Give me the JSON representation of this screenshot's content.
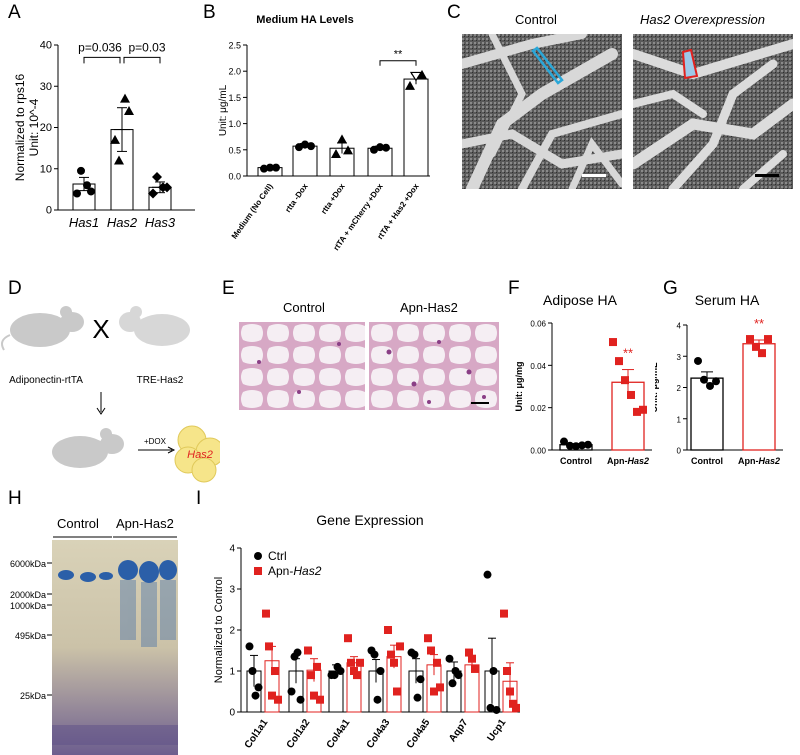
{
  "panels": {
    "A": "A",
    "B": "B",
    "C": "C",
    "D": "D",
    "E": "E",
    "F": "F",
    "G": "G",
    "H": "H",
    "I": "I"
  },
  "chart_data": [
    {
      "panel": "A",
      "type": "scatter",
      "ylabel_line1": "Normalized to rps16",
      "ylabel_line2": "Unit: 10^-4",
      "categories": [
        "Has1",
        "Has2",
        "Has3"
      ],
      "means": [
        6.3,
        19.5,
        5.5
      ],
      "sem": [
        1.6,
        5.3,
        1.3
      ],
      "points": [
        [
          4,
          4.5,
          9.5,
          6
        ],
        [
          17,
          24,
          12,
          27
        ],
        [
          4,
          5.5,
          8,
          5.5
        ]
      ],
      "ylim": [
        0,
        40
      ],
      "yticks": [
        0,
        10,
        20,
        30,
        40
      ],
      "annotations": [
        "p=0.036",
        "p=0.03"
      ]
    },
    {
      "panel": "B",
      "type": "bar",
      "title": "Medium HA Levels",
      "ylabel": "Unit: μg/mL",
      "categories": [
        "Medium (No Cell)",
        "rtta -Dox",
        "rtta +Dox",
        "rtTA + mCherry +Dox",
        "rtTA + Has2 +Dox"
      ],
      "values": [
        0.16,
        0.57,
        0.53,
        0.53,
        1.85
      ],
      "sem": [
        0.02,
        0.05,
        0.1,
        0.04,
        0.1
      ],
      "points": [
        [
          0.14,
          0.16,
          0.16
        ],
        [
          0.55,
          0.6,
          0.57
        ],
        [
          0.42,
          0.7,
          0.49
        ],
        [
          0.5,
          0.55,
          0.54
        ],
        [
          1.72,
          1.9,
          1.93
        ]
      ],
      "ylim": [
        0,
        2.5
      ],
      "yticks": [
        "0.0",
        "0.5",
        "1.0",
        "1.5",
        "2.0",
        "2.5"
      ],
      "annotations": [
        "**"
      ]
    },
    {
      "panel": "F",
      "type": "bar",
      "title": "Adipose HA",
      "ylabel": "Unit: μg/mg",
      "categories": [
        "Control",
        "Apn-Has2"
      ],
      "values": [
        0.0025,
        0.032
      ],
      "sem": [
        0.0005,
        0.006
      ],
      "points": [
        [
          0.004,
          0.002,
          0.0018,
          0.0022,
          0.0025
        ],
        [
          0.051,
          0.042,
          0.033,
          0.026,
          0.018,
          0.019
        ]
      ],
      "ylim": [
        0,
        0.06
      ],
      "yticks": [
        "0.00",
        "0.02",
        "0.04",
        "0.06"
      ],
      "annotations": [
        "**"
      ]
    },
    {
      "panel": "G",
      "type": "bar",
      "title": "Serum HA",
      "ylabel": "Unit: μg/mL",
      "categories": [
        "Control",
        "Apn-Has2"
      ],
      "values": [
        2.3,
        3.4
      ],
      "sem": [
        0.2,
        0.12
      ],
      "points": [
        [
          2.85,
          2.25,
          2.05,
          2.2
        ],
        [
          3.55,
          3.3,
          3.1,
          3.55
        ]
      ],
      "ylim": [
        0,
        4
      ],
      "yticks": [
        "0",
        "1",
        "2",
        "3",
        "4"
      ],
      "annotations": [
        "**"
      ]
    },
    {
      "panel": "I",
      "type": "bar",
      "title": "Gene Expression",
      "ylabel": "Normalized to Control",
      "categories": [
        "Col1a1",
        "Col1a2",
        "Col4a1",
        "Col4a3",
        "Col4a5",
        "Aqp7",
        "Ucp1"
      ],
      "series": [
        {
          "name": "Ctrl",
          "values": [
            1.0,
            1.0,
            1.0,
            1.0,
            1.0,
            1.0,
            1.0
          ],
          "sem": [
            0.38,
            0.3,
            0.15,
            0.28,
            0.3,
            0.22,
            0.8
          ],
          "points": [
            [
              1.6,
              1.0,
              0.4,
              0.6
            ],
            [
              0.5,
              1.35,
              1.45,
              0.3
            ],
            [
              0.9,
              0.9,
              1.1,
              1.0
            ],
            [
              1.5,
              1.4,
              0.3,
              1.0
            ],
            [
              1.45,
              1.4,
              0.35,
              0.8
            ],
            [
              1.3,
              0.7,
              1.0,
              0.9
            ],
            [
              3.35,
              0.1,
              1.0,
              0.05
            ]
          ]
        },
        {
          "name": "Apn-Has2",
          "values": [
            1.25,
            1.02,
            1.2,
            1.35,
            1.15,
            1.15,
            0.75
          ],
          "sem": [
            0.35,
            0.28,
            0.15,
            0.28,
            0.25,
            0.15,
            0.45
          ],
          "points": [
            [
              2.4,
              1.6,
              0.4,
              1.0,
              0.3
            ],
            [
              1.5,
              0.9,
              0.4,
              1.1,
              0.3
            ],
            [
              1.8,
              1.2,
              1.0,
              0.9,
              1.2
            ],
            [
              2.0,
              1.4,
              1.2,
              0.5,
              1.6
            ],
            [
              1.8,
              1.5,
              0.5,
              1.2,
              0.6
            ],
            [
              1.45,
              1.3,
              1.05
            ],
            [
              2.4,
              1.0,
              0.5,
              0.2,
              0.1
            ]
          ]
        }
      ],
      "ylim": [
        0,
        4
      ],
      "yticks": [
        "0",
        "1",
        "2",
        "3",
        "4"
      ]
    }
  ],
  "panel_C": {
    "left_label": "Control",
    "right_label": "Has2 Overexpression"
  },
  "panel_D": {
    "left_mouse": "Adiponectin-rtTA",
    "right_mouse": "TRE-Has2",
    "cross": "X",
    "arrow": "+DOX",
    "cell_label": "Has2"
  },
  "panel_E": {
    "left_label": "Control",
    "right_label": "Apn-Has2"
  },
  "panel_H": {
    "left_label": "Control",
    "right_label": "Apn-Has2",
    "markers": [
      "6000kDa",
      "2000kDa",
      "1000kDa",
      "495kDa",
      "25kDa"
    ]
  },
  "colors": {
    "ctrl": "#000000",
    "has2": "#e0221f",
    "blue_outline": "#2aa7d8"
  }
}
